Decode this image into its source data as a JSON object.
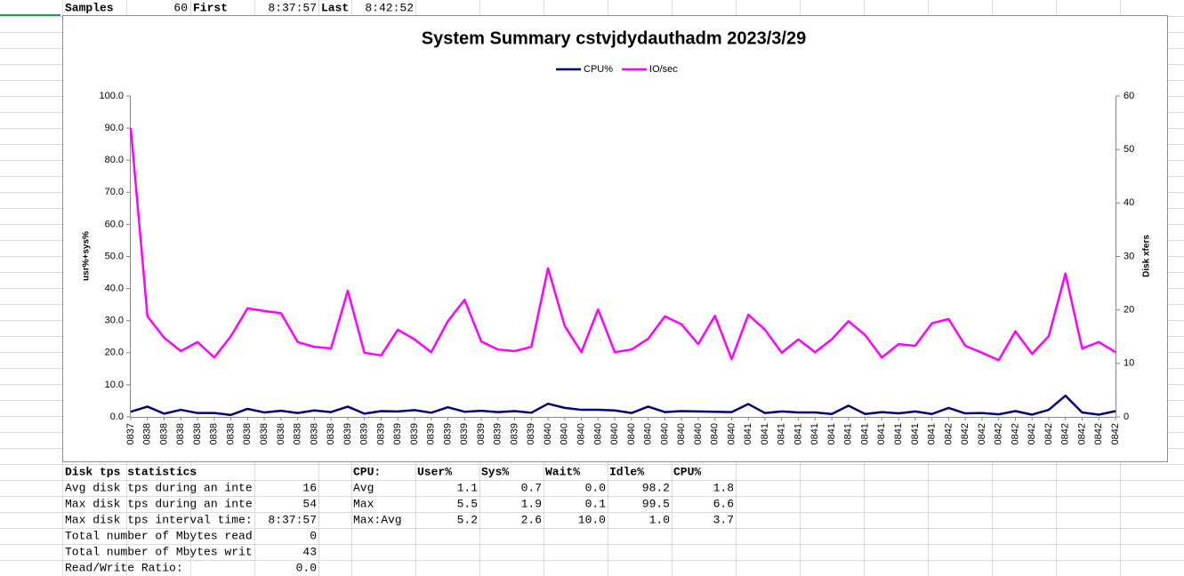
{
  "header_row": {
    "samples_label": "Samples",
    "samples": "60",
    "first_label": "First",
    "first": "8:37:57",
    "last_label": "Last",
    "last": "8:42:52"
  },
  "chart_data": {
    "type": "line",
    "title": "System Summary cstvjdydauthadm  2023/3/29",
    "categories": [
      "0837",
      "0838",
      "0838",
      "0838",
      "0838",
      "0838",
      "0838",
      "0838",
      "0838",
      "0838",
      "0838",
      "0838",
      "0838",
      "0839",
      "0839",
      "0839",
      "0839",
      "0839",
      "0839",
      "0839",
      "0839",
      "0839",
      "0839",
      "0839",
      "0839",
      "0840",
      "0840",
      "0840",
      "0840",
      "0840",
      "0840",
      "0840",
      "0840",
      "0840",
      "0840",
      "0840",
      "0840",
      "0841",
      "0841",
      "0841",
      "0841",
      "0841",
      "0841",
      "0841",
      "0841",
      "0841",
      "0841",
      "0841",
      "0841",
      "0842",
      "0842",
      "0842",
      "0842",
      "0842",
      "0842",
      "0842",
      "0842",
      "0842",
      "0842",
      "0842"
    ],
    "series": [
      {
        "name": "CPU%",
        "color": "#000080",
        "values": [
          1.6,
          3.2,
          1.0,
          2.2,
          1.2,
          1.2,
          0.6,
          2.5,
          1.4,
          1.9,
          1.2,
          2.0,
          1.5,
          3.2,
          1.0,
          1.8,
          1.7,
          2.1,
          1.3,
          3.0,
          1.6,
          1.9,
          1.5,
          1.8,
          1.3,
          4.1,
          2.8,
          2.2,
          2.2,
          2.0,
          1.2,
          3.2,
          1.5,
          1.8,
          1.7,
          1.6,
          1.5,
          4.0,
          1.2,
          1.7,
          1.4,
          1.4,
          0.9,
          3.5,
          0.9,
          1.5,
          1.1,
          1.7,
          0.9,
          2.8,
          1.1,
          1.2,
          0.8,
          1.8,
          0.7,
          2.2,
          6.6,
          1.4,
          0.7,
          1.8
        ]
      },
      {
        "name": "IO/sec",
        "color": "#ff00ff",
        "axis": "y2",
        "values": [
          54,
          18.8,
          14.8,
          12.3,
          14.0,
          11.1,
          15.1,
          20.3,
          19.8,
          19.4,
          14.0,
          13.1,
          12.8,
          23.6,
          12.0,
          11.5,
          16.3,
          14.5,
          12.1,
          17.9,
          21.9,
          14.1,
          12.6,
          12.3,
          13.1,
          27.8,
          17.0,
          12.1,
          20.1,
          12.1,
          12.6,
          14.6,
          18.8,
          17.3,
          13.6,
          18.9,
          10.8,
          19.1,
          16.3,
          12.0,
          14.5,
          12.1,
          14.5,
          17.9,
          15.3,
          11.1,
          13.6,
          13.3,
          17.5,
          18.3,
          13.3,
          12.0,
          10.6,
          16.0,
          11.8,
          15.1,
          26.8,
          12.8,
          14.0,
          12.1
        ]
      }
    ],
    "ylabel": "usr%+sys%",
    "y2label": "Disk xfers",
    "ylim": [
      0,
      100
    ],
    "yticks": [
      {
        "value": 0,
        "label": "0.0"
      },
      {
        "value": 10,
        "label": "10.0"
      },
      {
        "value": 20,
        "label": "20.0"
      },
      {
        "value": 30,
        "label": "30.0"
      },
      {
        "value": 40,
        "label": "40.0"
      },
      {
        "value": 50,
        "label": "50.0"
      },
      {
        "value": 60,
        "label": "60.0"
      },
      {
        "value": 70,
        "label": "70.0"
      },
      {
        "value": 80,
        "label": "80.0"
      },
      {
        "value": 90,
        "label": "90.0"
      },
      {
        "value": 100,
        "label": "100.0"
      }
    ],
    "y2lim": [
      0,
      60
    ],
    "y2ticks": [
      0,
      10,
      20,
      30,
      40,
      50,
      60
    ],
    "legend": "top"
  },
  "disk_stats": {
    "title": "Disk tps statistics",
    "rows": [
      [
        "Avg disk tps during an inte",
        "16"
      ],
      [
        "Max disk tps during an inte",
        "54"
      ],
      [
        "Max disk tps interval time:",
        "8:37:57"
      ],
      [
        "Total number of Mbytes read",
        "0"
      ],
      [
        "Total number of Mbytes writ",
        "43"
      ],
      [
        "Read/Write Ratio:",
        "0.0"
      ]
    ]
  },
  "cpu_stats": {
    "header": [
      "CPU:",
      "User%",
      "Sys%",
      "Wait%",
      "Idle%",
      "CPU%"
    ],
    "rows": [
      [
        "Avg",
        "1.1",
        "0.7",
        "0.0",
        "98.2",
        "1.8"
      ],
      [
        "Max",
        "5.5",
        "1.9",
        "0.1",
        "99.5",
        "6.6"
      ],
      [
        "Max:Avg",
        "5.2",
        "2.6",
        "10.0",
        "1.0",
        "3.7"
      ]
    ]
  }
}
